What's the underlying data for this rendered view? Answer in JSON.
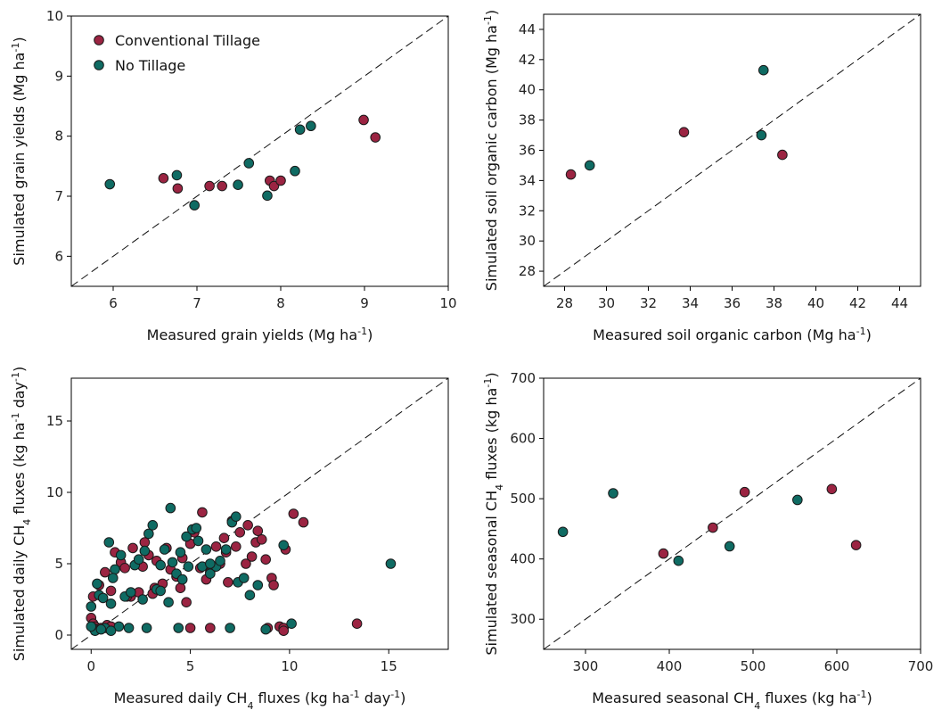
{
  "colors": {
    "ct": "#9b2442",
    "nt": "#0f6b63",
    "edge": "#1a1a1a"
  },
  "legend": [
    {
      "label": "Conventional Tillage",
      "color_key": "ct"
    },
    {
      "label": "No Tillage",
      "color_key": "nt"
    }
  ],
  "chart_data": [
    {
      "type": "scatter",
      "xlabel": {
        "pre": "Measured grain yields (Mg ha",
        "sup": "-1",
        "post": ")"
      },
      "ylabel": {
        "pre": "Simulated grain yields (Mg ha",
        "sup": "-1",
        "post": ")"
      },
      "xlim": [
        5.5,
        10
      ],
      "ylim": [
        5.5,
        10
      ],
      "xticks": [
        6,
        7,
        8,
        9,
        10
      ],
      "yticks": [
        6,
        7,
        8,
        9,
        10
      ],
      "one_to_one": true,
      "series": [
        {
          "name": "Conventional Tillage",
          "color_key": "ct",
          "points": [
            [
              6.6,
              7.3
            ],
            [
              6.77,
              7.13
            ],
            [
              7.15,
              7.17
            ],
            [
              7.3,
              7.17
            ],
            [
              7.87,
              7.26
            ],
            [
              7.92,
              7.17
            ],
            [
              8.0,
              7.26
            ],
            [
              8.99,
              8.27
            ],
            [
              9.13,
              7.98
            ]
          ]
        },
        {
          "name": "No Tillage",
          "color_key": "nt",
          "points": [
            [
              5.96,
              7.2
            ],
            [
              6.76,
              7.35
            ],
            [
              6.97,
              6.85
            ],
            [
              7.49,
              7.19
            ],
            [
              7.62,
              7.55
            ],
            [
              7.84,
              7.01
            ],
            [
              8.17,
              7.42
            ],
            [
              8.23,
              8.11
            ],
            [
              8.36,
              8.17
            ]
          ]
        }
      ]
    },
    {
      "type": "scatter",
      "xlabel": {
        "pre": "Measured soil organic carbon (Mg ha",
        "sup": "-1",
        "post": ")"
      },
      "ylabel": {
        "pre": "Simulated soil organic carbon (Mg ha",
        "sup": "-1",
        "post": ")"
      },
      "xlim": [
        27,
        45
      ],
      "ylim": [
        27,
        45
      ],
      "xticks": [
        28,
        30,
        32,
        34,
        36,
        38,
        40,
        42,
        44
      ],
      "yticks": [
        28,
        30,
        32,
        34,
        36,
        38,
        40,
        42,
        44
      ],
      "one_to_one": true,
      "series": [
        {
          "name": "Conventional Tillage",
          "color_key": "ct",
          "points": [
            [
              28.3,
              34.4
            ],
            [
              33.7,
              37.2
            ],
            [
              38.4,
              35.7
            ]
          ]
        },
        {
          "name": "No Tillage",
          "color_key": "nt",
          "points": [
            [
              29.2,
              35.0
            ],
            [
              37.4,
              37.0
            ],
            [
              37.5,
              41.3
            ]
          ]
        }
      ]
    },
    {
      "type": "scatter",
      "xlabel": {
        "pre": "Measured daily CH",
        "sub": "4",
        "mid": " fluxes (kg ha",
        "sup": "-1",
        "mid2": " day",
        "sup2": "-1",
        "post": ")"
      },
      "ylabel": {
        "pre": "Simulated daily CH",
        "sub": "4",
        "mid": " fluxes (kg ha",
        "sup": "-1",
        "mid2": " day",
        "sup2": "-1",
        "post": ")"
      },
      "xlim": [
        -1,
        18
      ],
      "ylim": [
        -1,
        18
      ],
      "xticks": [
        0,
        5,
        10,
        15
      ],
      "yticks": [
        0,
        5,
        10,
        15
      ],
      "one_to_one": true,
      "series": [
        {
          "name": "Conventional Tillage",
          "color_key": "ct",
          "points": [
            [
              0.0,
              1.2
            ],
            [
              0.1,
              0.8
            ],
            [
              0.2,
              0.6
            ],
            [
              0.3,
              0.4
            ],
            [
              0.5,
              0.5
            ],
            [
              0.8,
              0.7
            ],
            [
              1.0,
              0.6
            ],
            [
              0.1,
              2.7
            ],
            [
              0.4,
              3.5
            ],
            [
              0.7,
              4.4
            ],
            [
              1.0,
              3.1
            ],
            [
              1.2,
              5.8
            ],
            [
              1.5,
              5.1
            ],
            [
              1.7,
              4.7
            ],
            [
              2.0,
              2.7
            ],
            [
              2.1,
              6.1
            ],
            [
              2.4,
              3.0
            ],
            [
              2.6,
              4.8
            ],
            [
              2.7,
              6.5
            ],
            [
              2.9,
              5.6
            ],
            [
              3.2,
              3.3
            ],
            [
              3.3,
              5.2
            ],
            [
              3.6,
              3.6
            ],
            [
              3.8,
              6.1
            ],
            [
              4.0,
              4.6
            ],
            [
              4.3,
              4.1
            ],
            [
              4.6,
              5.4
            ],
            [
              4.8,
              2.3
            ],
            [
              5.0,
              6.4
            ],
            [
              5.2,
              7.2
            ],
            [
              5.5,
              4.7
            ],
            [
              5.6,
              8.6
            ],
            [
              5.8,
              3.9
            ],
            [
              6.0,
              4.4
            ],
            [
              6.3,
              6.2
            ],
            [
              6.5,
              5.0
            ],
            [
              6.7,
              6.8
            ],
            [
              6.9,
              3.7
            ],
            [
              7.1,
              8.0
            ],
            [
              7.3,
              6.2
            ],
            [
              7.5,
              7.2
            ],
            [
              7.8,
              5.0
            ],
            [
              7.9,
              7.7
            ],
            [
              8.1,
              5.5
            ],
            [
              8.3,
              6.5
            ],
            [
              8.4,
              7.3
            ],
            [
              8.6,
              6.7
            ],
            [
              8.8,
              5.3
            ],
            [
              9.1,
              4.0
            ],
            [
              9.2,
              3.5
            ],
            [
              9.5,
              0.6
            ],
            [
              9.8,
              6.0
            ],
            [
              10.2,
              8.5
            ],
            [
              10.7,
              7.9
            ],
            [
              9.7,
              0.5
            ],
            [
              9.7,
              0.3
            ],
            [
              6.0,
              0.5
            ],
            [
              8.9,
              0.5
            ],
            [
              5.0,
              0.5
            ],
            [
              13.4,
              0.8
            ],
            [
              6.8,
              5.8
            ],
            [
              3.1,
              2.9
            ],
            [
              1.8,
              2.7
            ],
            [
              4.5,
              3.3
            ]
          ]
        },
        {
          "name": "No Tillage",
          "color_key": "nt",
          "points": [
            [
              0.0,
              2.0
            ],
            [
              0.1,
              0.5
            ],
            [
              0.2,
              0.3
            ],
            [
              0.3,
              3.6
            ],
            [
              0.4,
              2.8
            ],
            [
              0.6,
              2.6
            ],
            [
              0.7,
              0.5
            ],
            [
              0.9,
              6.5
            ],
            [
              1.0,
              2.2
            ],
            [
              1.2,
              4.6
            ],
            [
              1.4,
              0.6
            ],
            [
              1.5,
              5.6
            ],
            [
              1.7,
              2.7
            ],
            [
              1.9,
              0.5
            ],
            [
              2.2,
              4.9
            ],
            [
              2.4,
              5.3
            ],
            [
              2.6,
              2.5
            ],
            [
              2.7,
              5.9
            ],
            [
              2.9,
              7.1
            ],
            [
              3.1,
              7.7
            ],
            [
              3.3,
              3.2
            ],
            [
              3.5,
              4.9
            ],
            [
              3.7,
              6.0
            ],
            [
              3.9,
              2.3
            ],
            [
              4.0,
              8.9
            ],
            [
              4.1,
              5.1
            ],
            [
              4.3,
              4.3
            ],
            [
              4.5,
              5.8
            ],
            [
              4.6,
              3.9
            ],
            [
              4.8,
              6.9
            ],
            [
              4.9,
              4.8
            ],
            [
              5.1,
              7.4
            ],
            [
              5.3,
              7.5
            ],
            [
              5.4,
              6.6
            ],
            [
              5.6,
              4.8
            ],
            [
              5.8,
              6.0
            ],
            [
              6.0,
              4.3
            ],
            [
              6.3,
              4.8
            ],
            [
              6.5,
              5.2
            ],
            [
              6.8,
              6.0
            ],
            [
              7.1,
              7.9
            ],
            [
              7.3,
              8.3
            ],
            [
              7.4,
              3.7
            ],
            [
              7.7,
              4.0
            ],
            [
              8.0,
              2.8
            ],
            [
              8.4,
              3.5
            ],
            [
              8.8,
              0.4
            ],
            [
              9.7,
              6.3
            ],
            [
              10.1,
              0.8
            ],
            [
              15.1,
              5.0
            ],
            [
              2.8,
              0.5
            ],
            [
              4.4,
              0.5
            ],
            [
              7.0,
              0.5
            ],
            [
              0.0,
              0.6
            ],
            [
              0.5,
              0.4
            ],
            [
              1.0,
              0.3
            ],
            [
              3.5,
              3.1
            ],
            [
              6.0,
              5.0
            ],
            [
              1.1,
              4.0
            ],
            [
              2.0,
              3.0
            ]
          ]
        }
      ]
    },
    {
      "type": "scatter",
      "xlabel": {
        "pre": "Measured seasonal CH",
        "sub": "4",
        "mid": " fluxes (kg ha",
        "sup": "-1",
        "post": ")"
      },
      "ylabel": {
        "pre": "Simulated seasonal CH",
        "sub": "4",
        "mid": " fluxes (kg ha",
        "sup": "-1",
        "post": ")"
      },
      "xlim": [
        250,
        700
      ],
      "ylim": [
        250,
        700
      ],
      "xticks": [
        300,
        400,
        500,
        600,
        700
      ],
      "yticks": [
        300,
        400,
        500,
        600,
        700
      ],
      "one_to_one": true,
      "series": [
        {
          "name": "Conventional Tillage",
          "color_key": "ct",
          "points": [
            [
              393,
              409
            ],
            [
              452,
              452
            ],
            [
              490,
              511
            ],
            [
              594,
              516
            ],
            [
              623,
              423
            ]
          ]
        },
        {
          "name": "No Tillage",
          "color_key": "nt",
          "points": [
            [
              273,
              445
            ],
            [
              333,
              509
            ],
            [
              411,
              397
            ],
            [
              472,
              421
            ],
            [
              553,
              498
            ]
          ]
        }
      ]
    }
  ]
}
